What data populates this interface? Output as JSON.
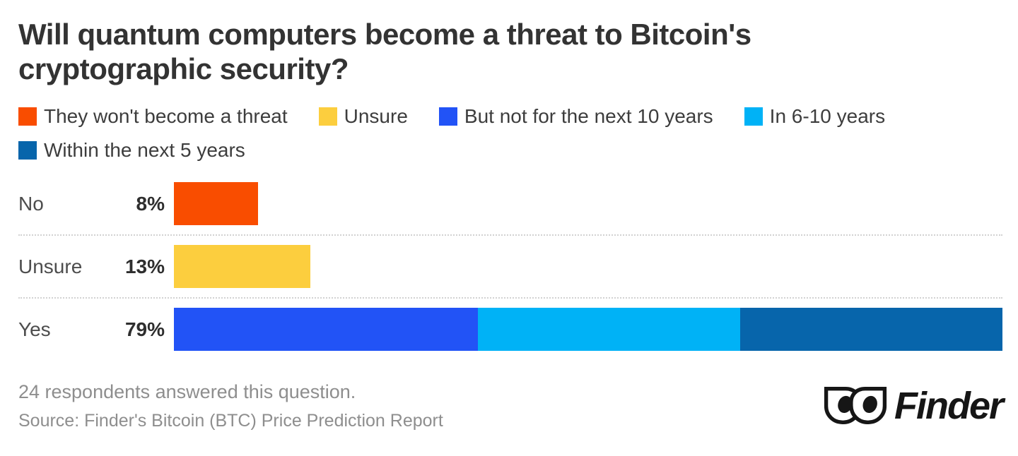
{
  "title": {
    "line1": "Will quantum computers become a threat to Bitcoin's",
    "line2": "cryptographic security?"
  },
  "legend": {
    "items": [
      {
        "label": "They won't become a threat",
        "color": "#F94D00"
      },
      {
        "label": "Unsure",
        "color": "#FCCE3E"
      },
      {
        "label": "But not for the next 10 years",
        "color": "#2253F6"
      },
      {
        "label": "In 6-10 years",
        "color": "#00B2F6"
      },
      {
        "label": "Within the next 5 years",
        "color": "#0765AB"
      }
    ]
  },
  "chart_data": {
    "type": "bar",
    "orientation": "horizontal",
    "stacked": true,
    "title": "Will quantum computers become a threat to Bitcoin's cryptographic security?",
    "categories": [
      "No",
      "Unsure",
      "Yes"
    ],
    "value_labels": [
      "8%",
      "13%",
      "79%"
    ],
    "totals": [
      8,
      13,
      79
    ],
    "axis_max_pct": 79,
    "grid": false,
    "legend_position": "top",
    "series": [
      {
        "name": "They won't become a threat",
        "color": "#F94D00",
        "values": [
          8,
          0,
          0
        ]
      },
      {
        "name": "Unsure",
        "color": "#FCCE3E",
        "values": [
          0,
          13,
          0
        ]
      },
      {
        "name": "But not for the next 10 years",
        "color": "#2253F6",
        "values": [
          0,
          0,
          29
        ]
      },
      {
        "name": "In 6-10 years",
        "color": "#00B2F6",
        "values": [
          0,
          0,
          25
        ]
      },
      {
        "name": "Within the next 5 years",
        "color": "#0765AB",
        "values": [
          0,
          0,
          25
        ]
      }
    ],
    "rows": [
      {
        "label": "No",
        "value_label": "8%",
        "total": 8,
        "segments": [
          {
            "series": "They won't become a threat",
            "value": 8,
            "color": "#F94D00"
          }
        ]
      },
      {
        "label": "Unsure",
        "value_label": "13%",
        "total": 13,
        "segments": [
          {
            "series": "Unsure",
            "value": 13,
            "color": "#FCCE3E"
          }
        ]
      },
      {
        "label": "Yes",
        "value_label": "79%",
        "total": 79,
        "segments": [
          {
            "series": "But not for the next 10 years",
            "value": 29,
            "color": "#2253F6"
          },
          {
            "series": "In 6-10 years",
            "value": 25,
            "color": "#00B2F6"
          },
          {
            "series": "Within the next 5 years",
            "value": 25,
            "color": "#0765AB"
          }
        ]
      }
    ]
  },
  "footer": {
    "respondents": "24 respondents answered this question.",
    "source": "Source: Finder's Bitcoin (BTC) Price Prediction Report"
  },
  "logo": {
    "text": "Finder",
    "icon": "finder-eyes-icon"
  },
  "colors": {
    "title_text": "#333333",
    "label_text": "#4d4d4d",
    "value_text": "#2e2e2e",
    "footer_text": "#8e8e8e",
    "separator": "#d2d2d2",
    "background": "#ffffff"
  }
}
